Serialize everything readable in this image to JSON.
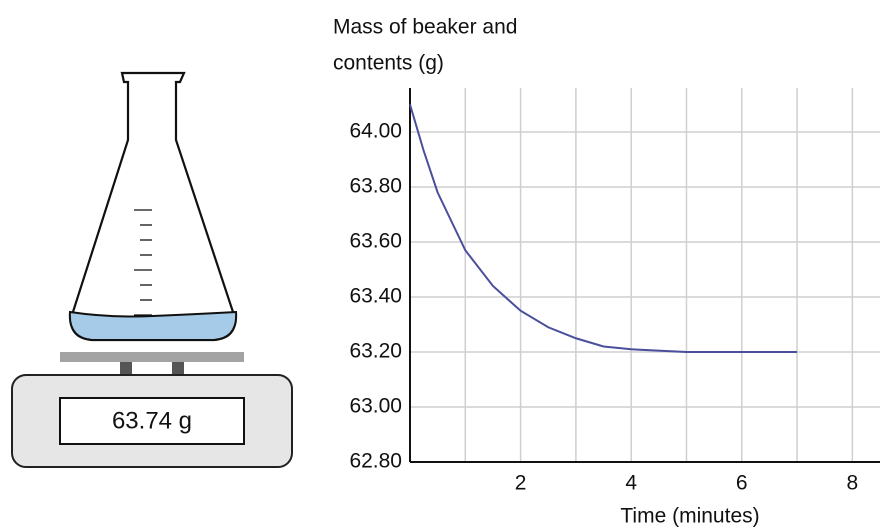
{
  "scale_reading": "63.74 g",
  "chart_data": {
    "type": "line",
    "ylabel": [
      "Mass of beaker and",
      "contents (g)"
    ],
    "xlabel": "Time (minutes)",
    "x": [
      0,
      0.25,
      0.5,
      1,
      1.5,
      2,
      2.5,
      3,
      3.5,
      4,
      5,
      6,
      7
    ],
    "series": [
      {
        "name": "Mass",
        "color": "#4a4f9c",
        "values": [
          64.1,
          63.93,
          63.78,
          63.57,
          63.44,
          63.35,
          63.29,
          63.25,
          63.22,
          63.21,
          63.2,
          63.2,
          63.2
        ]
      }
    ],
    "xlim": [
      0,
      8.5
    ],
    "ylim": [
      62.8,
      64.16
    ],
    "xticks": [
      2,
      4,
      6,
      8
    ],
    "x_minor_grid": [
      1,
      3,
      5,
      7
    ],
    "yticks": [
      {
        "value": 62.8,
        "label": "62.80"
      },
      {
        "value": 63.0,
        "label": "63.00"
      },
      {
        "value": 63.2,
        "label": "63.20"
      },
      {
        "value": 63.4,
        "label": "63.40"
      },
      {
        "value": 63.6,
        "label": "63.60"
      },
      {
        "value": 63.8,
        "label": "63.80"
      },
      {
        "value": 64.0,
        "label": "64.00"
      }
    ],
    "grid": true
  }
}
